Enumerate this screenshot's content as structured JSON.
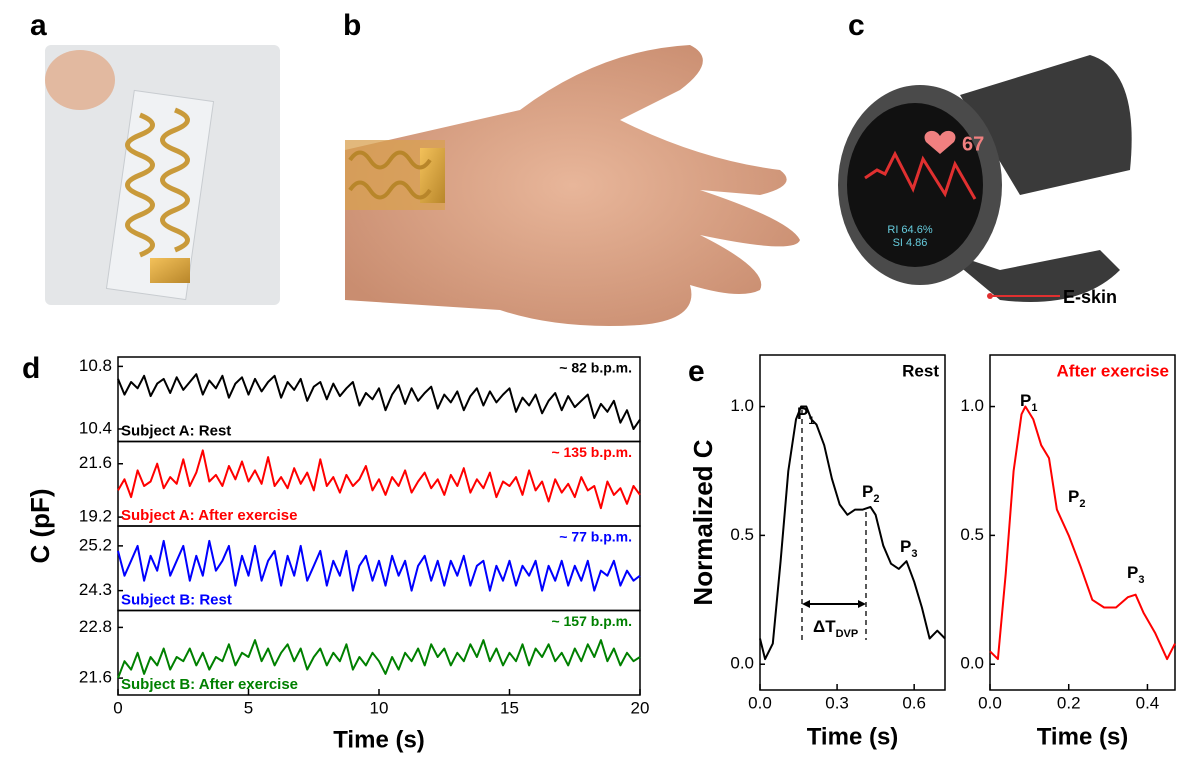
{
  "panels": {
    "a": "a",
    "b": "b",
    "c": "c",
    "d": "d",
    "e": "e"
  },
  "watch": {
    "heart_rate": "67",
    "ri": "RI  64.6%",
    "si": "SI  4.86",
    "label": "E-skin"
  },
  "chart_data": [
    {
      "type": "line",
      "xlabel": "Time (s)",
      "ylabel": "C (pF)",
      "xlim": [
        0,
        20
      ],
      "xticks": [
        0,
        5,
        10,
        15,
        20
      ],
      "x": [
        0,
        0.25,
        0.5,
        0.75,
        1,
        1.25,
        1.5,
        1.75,
        2,
        2.25,
        2.5,
        2.75,
        3,
        3.25,
        3.5,
        3.75,
        4,
        4.25,
        4.5,
        4.75,
        5,
        5.25,
        5.5,
        5.75,
        6,
        6.25,
        6.5,
        6.75,
        7,
        7.25,
        7.5,
        7.75,
        8,
        8.25,
        8.5,
        8.75,
        9,
        9.25,
        9.5,
        9.75,
        10,
        10.25,
        10.5,
        10.75,
        11,
        11.25,
        11.5,
        11.75,
        12,
        12.25,
        12.5,
        12.75,
        13,
        13.25,
        13.5,
        13.75,
        14,
        14.25,
        14.5,
        14.75,
        15,
        15.25,
        15.5,
        15.75,
        16,
        16.25,
        16.5,
        16.75,
        17,
        17.25,
        17.5,
        17.75,
        18,
        18.25,
        18.5,
        18.75,
        19,
        19.25,
        19.5,
        19.75,
        20
      ],
      "series": [
        {
          "name": "Subject A: Rest",
          "rate": "~ 82 b.p.m.",
          "color": "#000000",
          "ylim": [
            10.32,
            10.86
          ],
          "yticks": [
            10.8,
            10.4
          ],
          "values": [
            10.72,
            10.62,
            10.7,
            10.66,
            10.74,
            10.61,
            10.69,
            10.72,
            10.63,
            10.73,
            10.65,
            10.7,
            10.75,
            10.62,
            10.71,
            10.66,
            10.74,
            10.6,
            10.69,
            10.73,
            10.62,
            10.72,
            10.64,
            10.7,
            10.74,
            10.6,
            10.7,
            10.65,
            10.72,
            10.58,
            10.67,
            10.7,
            10.59,
            10.69,
            10.61,
            10.66,
            10.7,
            10.55,
            10.63,
            10.59,
            10.66,
            10.52,
            10.62,
            10.68,
            10.56,
            10.66,
            10.58,
            10.63,
            10.67,
            10.53,
            10.62,
            10.57,
            10.64,
            10.52,
            10.61,
            10.66,
            10.55,
            10.64,
            10.57,
            10.62,
            10.66,
            10.51,
            10.6,
            10.55,
            10.62,
            10.5,
            10.58,
            10.63,
            10.52,
            10.61,
            10.54,
            10.58,
            10.62,
            10.47,
            10.56,
            10.51,
            10.58,
            10.44,
            10.52,
            10.4,
            10.46
          ]
        },
        {
          "name": "Subject A: After exercise",
          "rate": "~ 135 b.p.m.",
          "color": "#ff0000",
          "ylim": [
            18.8,
            22.6
          ],
          "yticks": [
            21.6,
            19.2
          ],
          "values": [
            20.4,
            20.9,
            20.1,
            21.3,
            20.6,
            20.8,
            21.6,
            20.5,
            21.0,
            20.7,
            21.8,
            20.6,
            21.2,
            22.2,
            20.8,
            21.1,
            20.6,
            21.5,
            20.9,
            21.7,
            20.8,
            21.3,
            20.7,
            21.9,
            20.6,
            21.0,
            20.5,
            21.4,
            20.7,
            21.2,
            20.4,
            21.8,
            20.6,
            21.0,
            20.3,
            21.1,
            20.6,
            20.9,
            21.5,
            20.4,
            20.9,
            20.2,
            21.0,
            20.6,
            21.3,
            20.3,
            20.8,
            21.2,
            20.5,
            20.9,
            20.2,
            21.1,
            20.6,
            21.4,
            20.3,
            20.9,
            20.5,
            21.2,
            20.1,
            20.8,
            20.6,
            21.0,
            20.2,
            21.3,
            20.4,
            20.8,
            19.9,
            20.9,
            20.3,
            20.7,
            20.1,
            21.0,
            20.4,
            20.6,
            19.6,
            20.8,
            20.2,
            20.5,
            19.8,
            20.6,
            20.2
          ]
        },
        {
          "name": "Subject B: Rest",
          "rate": "~ 77 b.p.m.",
          "color": "#0000ff",
          "ylim": [
            23.9,
            25.6
          ],
          "yticks": [
            25.2,
            24.3
          ],
          "values": [
            25.1,
            24.6,
            24.9,
            25.2,
            24.5,
            25.0,
            24.7,
            25.3,
            24.6,
            24.9,
            25.2,
            24.5,
            25.0,
            24.6,
            25.3,
            24.7,
            24.9,
            25.2,
            24.4,
            25.0,
            24.6,
            25.2,
            24.5,
            24.9,
            25.1,
            24.4,
            25.0,
            24.6,
            25.2,
            24.5,
            24.8,
            25.1,
            24.4,
            24.9,
            24.6,
            25.1,
            24.3,
            24.8,
            25.0,
            24.5,
            24.9,
            24.4,
            25.0,
            24.6,
            24.9,
            24.3,
            24.8,
            25.0,
            24.5,
            24.9,
            24.4,
            24.9,
            24.6,
            25.0,
            24.4,
            24.8,
            24.9,
            24.3,
            24.8,
            24.5,
            24.9,
            24.4,
            24.8,
            24.6,
            24.9,
            24.3,
            24.8,
            24.5,
            24.9,
            24.4,
            24.8,
            24.5,
            24.9,
            24.3,
            24.7,
            24.6,
            24.9,
            24.4,
            24.7,
            24.5,
            24.6
          ]
        },
        {
          "name": "Subject B: After exercise",
          "rate": "~ 157 b.p.m.",
          "color": "#008000",
          "ylim": [
            21.2,
            23.2
          ],
          "yticks": [
            22.8,
            21.6
          ],
          "values": [
            21.6,
            22.0,
            21.8,
            22.2,
            21.7,
            22.1,
            21.9,
            22.3,
            21.8,
            22.1,
            22.0,
            22.3,
            21.9,
            22.2,
            21.8,
            22.1,
            22.0,
            22.4,
            21.9,
            22.2,
            22.1,
            22.5,
            22.0,
            22.3,
            21.9,
            22.2,
            22.4,
            22.0,
            22.3,
            21.8,
            22.1,
            22.3,
            21.9,
            22.2,
            22.0,
            22.4,
            21.8,
            22.1,
            21.9,
            22.2,
            22.0,
            21.7,
            22.1,
            21.8,
            22.2,
            22.0,
            22.3,
            21.9,
            22.4,
            22.1,
            22.3,
            21.9,
            22.2,
            22.0,
            22.4,
            22.1,
            22.5,
            22.0,
            22.3,
            21.9,
            22.2,
            22.0,
            22.4,
            21.9,
            22.3,
            22.1,
            22.4,
            22.0,
            22.2,
            21.9,
            22.3,
            22.0,
            22.4,
            22.1,
            22.5,
            22.0,
            22.3,
            21.9,
            22.2,
            22.0,
            22.1
          ]
        }
      ]
    },
    {
      "type": "line",
      "title": "Rest",
      "color": "#000000",
      "xlabel": "Time (s)",
      "ylabel": "Normalized C",
      "xlim": [
        0,
        0.72
      ],
      "xticks": [
        {
          "value": 0,
          "label": "0.0"
        },
        0.3,
        0.6
      ],
      "ylim": [
        -0.1,
        1.2
      ],
      "yticks": [
        {
          "value": 0,
          "label": "0.0"
        },
        0.5,
        {
          "value": 1,
          "label": "1.0"
        }
      ],
      "x": [
        0,
        0.02,
        0.05,
        0.08,
        0.11,
        0.14,
        0.16,
        0.18,
        0.2,
        0.22,
        0.25,
        0.28,
        0.31,
        0.34,
        0.37,
        0.4,
        0.43,
        0.45,
        0.48,
        0.51,
        0.54,
        0.57,
        0.6,
        0.63,
        0.66,
        0.69,
        0.72
      ],
      "values": [
        0.1,
        0.02,
        0.08,
        0.4,
        0.75,
        0.95,
        1.0,
        1.0,
        0.95,
        0.93,
        0.85,
        0.72,
        0.62,
        0.58,
        0.6,
        0.6,
        0.61,
        0.58,
        0.46,
        0.39,
        0.37,
        0.4,
        0.32,
        0.22,
        0.1,
        0.13,
        0.1
      ],
      "annotations": [
        {
          "text": "P",
          "sub": "1"
        },
        {
          "text": "P",
          "sub": "2"
        },
        {
          "text": "P",
          "sub": "3"
        },
        {
          "text": "ΔT",
          "sub": "DVP"
        }
      ]
    },
    {
      "type": "line",
      "title": "After exercise",
      "color": "#ff0000",
      "xlabel": "Time (s)",
      "xlim": [
        0,
        0.47
      ],
      "xticks": [
        {
          "value": 0,
          "label": "0.0"
        },
        0.2,
        0.4
      ],
      "ylim": [
        -0.1,
        1.2
      ],
      "yticks": [
        {
          "value": 0,
          "label": "0.0"
        },
        0.5,
        {
          "value": 1,
          "label": "1.0"
        }
      ],
      "x": [
        0,
        0.02,
        0.04,
        0.06,
        0.08,
        0.09,
        0.11,
        0.13,
        0.15,
        0.17,
        0.2,
        0.23,
        0.26,
        0.29,
        0.32,
        0.35,
        0.37,
        0.39,
        0.42,
        0.45,
        0.47
      ],
      "values": [
        0.05,
        0.02,
        0.35,
        0.75,
        0.97,
        1.0,
        0.95,
        0.85,
        0.8,
        0.6,
        0.5,
        0.38,
        0.25,
        0.22,
        0.22,
        0.26,
        0.27,
        0.2,
        0.12,
        0.02,
        0.08
      ],
      "annotations": [
        {
          "text": "P",
          "sub": "1"
        },
        {
          "text": "P",
          "sub": "2"
        },
        {
          "text": "P",
          "sub": "3"
        }
      ]
    }
  ]
}
